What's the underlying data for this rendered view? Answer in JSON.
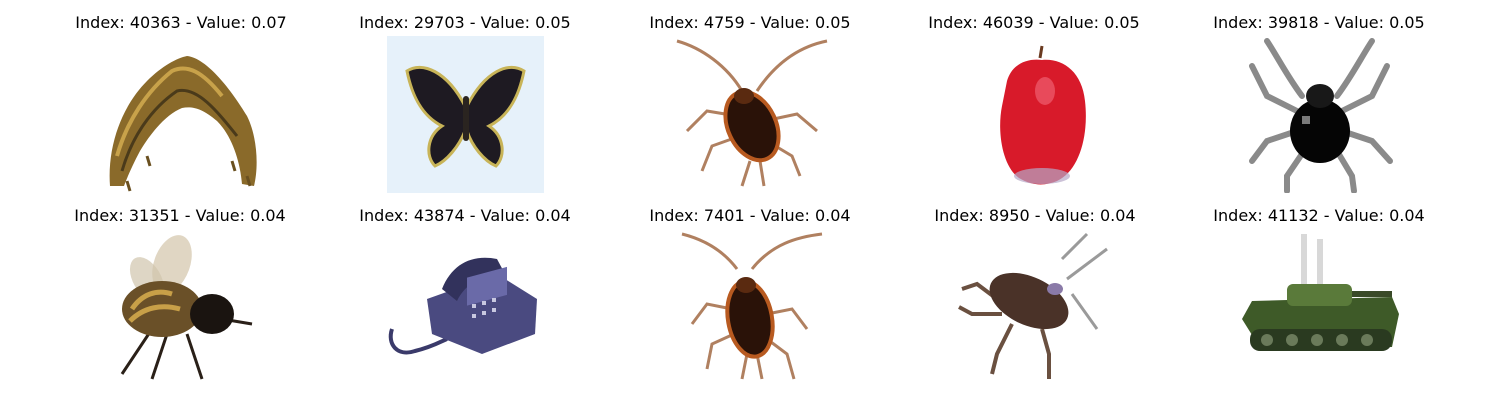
{
  "grid": {
    "items": [
      {
        "title": "Index: 40363 - Value: 0.07",
        "subject": "caterpillar"
      },
      {
        "title": "Index: 29703 - Value: 0.05",
        "subject": "butterfly"
      },
      {
        "title": "Index: 4759 - Value: 0.05",
        "subject": "cockroach"
      },
      {
        "title": "Index: 46039 - Value: 0.05",
        "subject": "apple"
      },
      {
        "title": "Index: 39818 - Value: 0.05",
        "subject": "spider"
      },
      {
        "title": "Index: 31351 - Value: 0.04",
        "subject": "bee"
      },
      {
        "title": "Index: 43874 - Value: 0.04",
        "subject": "telephone"
      },
      {
        "title": "Index: 7401 - Value: 0.04",
        "subject": "cockroach"
      },
      {
        "title": "Index: 8950 - Value: 0.04",
        "subject": "cockroach"
      },
      {
        "title": "Index: 41132 - Value: 0.04",
        "subject": "tank"
      }
    ]
  }
}
